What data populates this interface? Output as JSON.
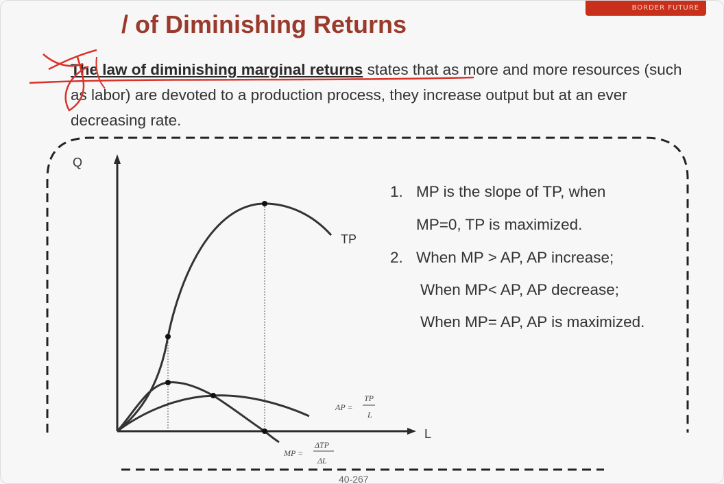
{
  "header": {
    "title": "/ of Diminishing Returns",
    "logo_text": "BORDER FUTURE"
  },
  "definition": {
    "lead": "The law of diminishing marginal returns",
    "rest": " states that as more and more resources (such as labor) are devoted to a production process, they increase output but at an ever decreasing rate."
  },
  "diagram": {
    "y_axis_label": "Q",
    "x_axis_label": "L",
    "tp_label": "TP",
    "ap_formula": {
      "lhs": "AP =",
      "num": "TP",
      "den": "L"
    },
    "mp_formula": {
      "lhs": "MP =",
      "num": "ΔTP",
      "den": "ΔL"
    }
  },
  "notes": [
    {
      "num": "1.",
      "line1": "MP is the slope of TP, when",
      "line2": "MP=0, TP is maximized."
    },
    {
      "num": "2.",
      "line1": "When MP > AP, AP increase;",
      "line2": "When MP< AP, AP decrease;",
      "line3": "When MP= AP, AP is maximized."
    }
  ],
  "footer": {
    "page": "40-267"
  },
  "colors": {
    "title": "#9a3a2c",
    "scribble": "#d9332a",
    "curve": "#333333"
  }
}
